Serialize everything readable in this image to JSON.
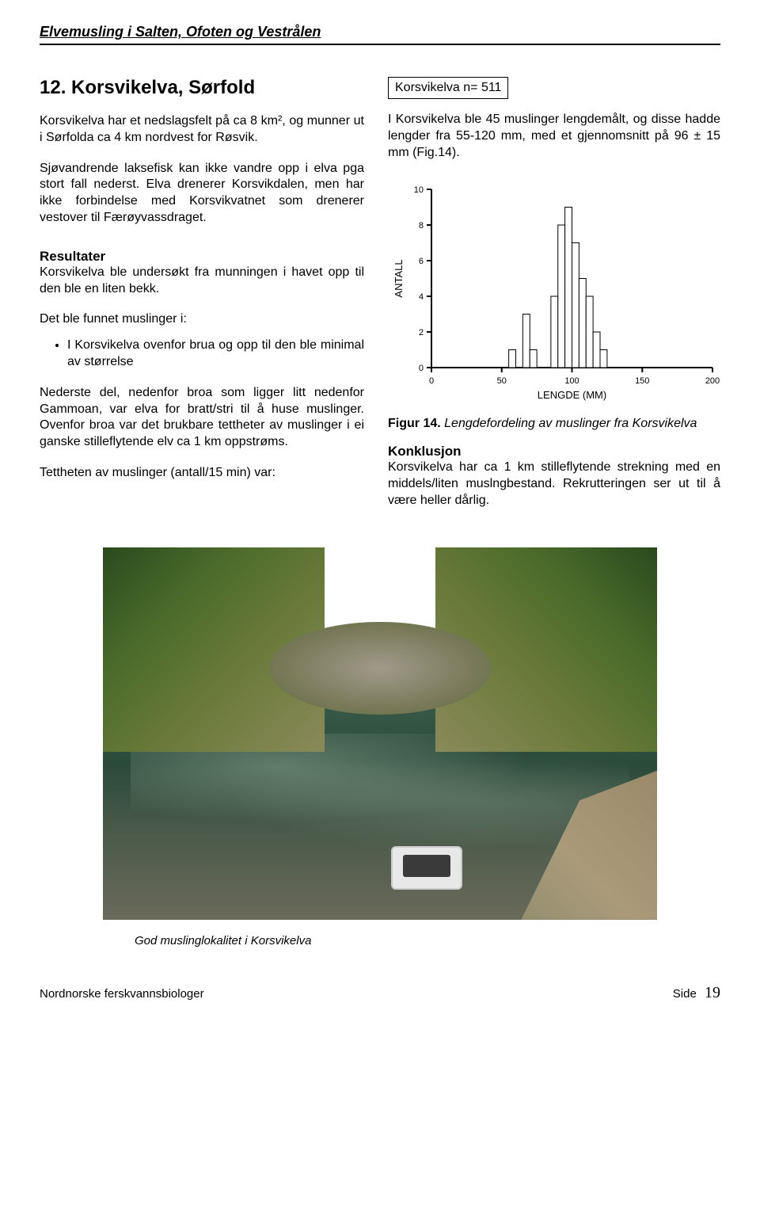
{
  "header": {
    "title": "Elvemusling i Salten, Ofoten og Vestrålen"
  },
  "section": {
    "title": "12. Korsvikelva, Sørfold",
    "p1": "Korsvikelva har et nedslagsfelt på ca 8 km², og munner ut i Sørfolda ca 4 km nordvest for Røsvik.",
    "p2": "Sjøvandrende laksefisk kan ikke vandre opp i elva pga stort fall nederst. Elva drenerer Korsvikdalen, men har ikke forbindelse med Korsvikvatnet som drenerer vestover til Færøyvassdraget."
  },
  "resultater": {
    "title": "Resultater",
    "p1": "Korsvikelva ble undersøkt fra munningen i havet opp til den ble en liten bekk.",
    "p2": "Det ble funnet muslinger i:",
    "bullet1": "I Korsvikelva ovenfor brua og opp til den ble minimal av størrelse",
    "p3": "Nederste del, nedenfor broa som ligger litt nedenfor Gammoan, var elva for bratt/stri til å huse muslinger. Ovenfor broa var det brukbare tettheter av muslinger i ei ganske stilleflytende elv ca 1 km oppstrøms.",
    "p4": "Tettheten av muslinger (antall/15 min) var:"
  },
  "right": {
    "box": "Korsvikelva  n= 511",
    "p1": "I Korsvikelva ble 45 muslinger lengdemålt, og disse hadde lengder fra 55-120 mm, med et gjennomsnitt på 96 ± 15 mm (Fig.14)."
  },
  "chart": {
    "type": "histogram",
    "title": "",
    "xlabel": "LENGDE (MM)",
    "ylabel": "ANTALL",
    "label_fontsize": 13,
    "tick_fontsize": 11,
    "xlim": [
      0,
      200
    ],
    "ylim": [
      0,
      10
    ],
    "xticks": [
      0,
      50,
      100,
      150,
      200
    ],
    "yticks": [
      0,
      2,
      4,
      6,
      8,
      10
    ],
    "bin_width": 5,
    "background_color": "#ffffff",
    "axis_color": "#000000",
    "bar_fill": "#ffffff",
    "bar_stroke": "#000000",
    "bar_stroke_width": 1,
    "bins": [
      {
        "x": 55,
        "count": 1
      },
      {
        "x": 65,
        "count": 3
      },
      {
        "x": 70,
        "count": 1
      },
      {
        "x": 85,
        "count": 4
      },
      {
        "x": 90,
        "count": 8
      },
      {
        "x": 95,
        "count": 9
      },
      {
        "x": 100,
        "count": 7
      },
      {
        "x": 105,
        "count": 5
      },
      {
        "x": 110,
        "count": 4
      },
      {
        "x": 115,
        "count": 2
      },
      {
        "x": 120,
        "count": 1
      }
    ]
  },
  "figure": {
    "label": "Figur 14.",
    "caption": "Lengdefordeling av muslinger fra Korsvikelva"
  },
  "konklusjon": {
    "title": "Konklusjon",
    "p1": "Korsvikelva har ca 1 km stilleflytende strekning med en middels/liten muslngbestand. Rekrutteringen ser ut til å være heller dårlig."
  },
  "photo": {
    "caption": "God muslinglokalitet i Korsvikelva"
  },
  "footer": {
    "left": "Nordnorske ferskvannsbiologer",
    "right_label": "Side",
    "page": "19"
  }
}
